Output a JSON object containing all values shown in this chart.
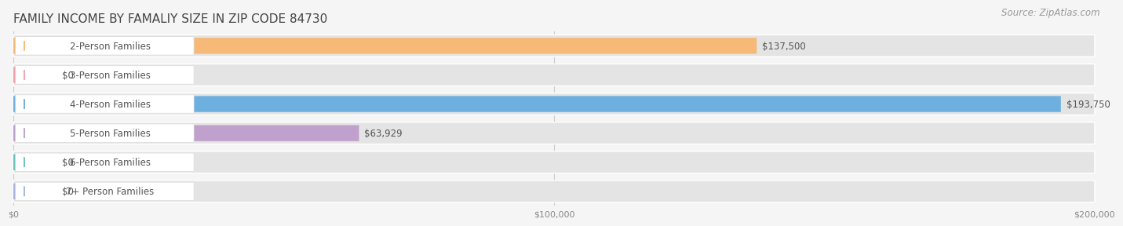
{
  "title": "FAMILY INCOME BY FAMALIY SIZE IN ZIP CODE 84730",
  "source": "Source: ZipAtlas.com",
  "categories": [
    "2-Person Families",
    "3-Person Families",
    "4-Person Families",
    "5-Person Families",
    "6-Person Families",
    "7+ Person Families"
  ],
  "values": [
    137500,
    0,
    193750,
    63929,
    0,
    0
  ],
  "bar_colors": [
    "#f7b977",
    "#f0a0a8",
    "#6db0e0",
    "#c0a0cc",
    "#6cc4b8",
    "#a8b4e0"
  ],
  "bar_bg_color": "#e8e8e8",
  "value_labels": [
    "$137,500",
    "$0",
    "$193,750",
    "$63,929",
    "$0",
    "$0"
  ],
  "zero_stub": 8000,
  "xmax": 200000,
  "xticks": [
    0,
    100000,
    200000
  ],
  "xtick_labels": [
    "$0",
    "$100,000",
    "$200,000"
  ],
  "background_color": "#f5f5f5",
  "plot_bg_color": "#f5f5f5",
  "title_fontsize": 11,
  "title_color": "#444444",
  "label_fontsize": 8.5,
  "value_fontsize": 8.5,
  "source_fontsize": 8.5,
  "source_color": "#999999",
  "grid_color": "#cccccc",
  "row_bg_color": "#e4e4e4",
  "label_box_color": "#ffffff"
}
